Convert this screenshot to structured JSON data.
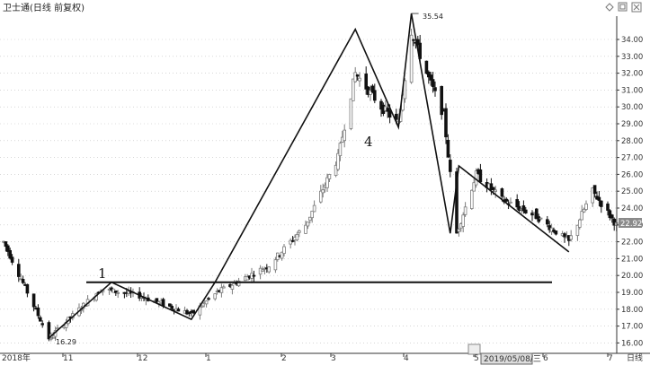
{
  "window": {
    "title": "卫士通(日线 前复权)",
    "controls": [
      "diamond-icon",
      "restore-icon",
      "close-icon"
    ]
  },
  "chart_data": {
    "type": "candlestick",
    "symbol": "卫士通",
    "period": "日线",
    "adjustment": "前复权",
    "y_axis": {
      "min": 16.0,
      "max": 34.0,
      "step": 1.0,
      "tick_labels": [
        "34.00",
        "33.00",
        "32.00",
        "31.00",
        "30.00",
        "29.00",
        "28.00",
        "27.00",
        "26.00",
        "25.00",
        "24.00",
        "23.00",
        "22.00",
        "21.00",
        "20.00",
        "19.00",
        "18.00",
        "17.00",
        "16.00"
      ]
    },
    "x_axis": {
      "tick_labels": [
        "2018年",
        "11",
        "12",
        "1",
        "2",
        "3",
        "4",
        "5",
        "6",
        "7"
      ],
      "highlighted_date": "2019/05/08/三",
      "period_label": "日线"
    },
    "last_price": "22.92",
    "annotations": {
      "low": "16.29",
      "high": "35.54"
    },
    "wave_labels": [
      "1",
      "4"
    ],
    "support_line": {
      "price": 19.6
    },
    "wave_path": [
      {
        "date": "2018-10-22",
        "price": 16.29
      },
      {
        "date": "2018-11-20",
        "price": 19.6
      },
      {
        "date": "2018-12-27",
        "price": 17.4
      },
      {
        "date": "2019-01-07",
        "price": 19.6
      },
      {
        "date": "2019-03-13",
        "price": 34.6
      },
      {
        "date": "2019-04-02",
        "price": 28.8
      },
      {
        "date": "2019-04-08",
        "price": 35.54
      },
      {
        "date": "2019-04-26",
        "price": 22.5
      },
      {
        "date": "2019-04-30",
        "price": 26.5
      },
      {
        "date": "2019-06-20",
        "price": 21.4
      }
    ],
    "anchors": [
      {
        "date": "2018-10-01",
        "price": 22.0
      },
      {
        "date": "2018-10-22",
        "price": 16.29
      },
      {
        "date": "2018-11-15",
        "price": 19.2
      },
      {
        "date": "2018-12-03",
        "price": 18.8
      },
      {
        "date": "2018-12-27",
        "price": 17.7
      },
      {
        "date": "2019-01-08",
        "price": 19.0
      },
      {
        "date": "2019-02-01",
        "price": 20.6
      },
      {
        "date": "2019-02-18",
        "price": 23.0
      },
      {
        "date": "2019-03-05",
        "price": 27.0
      },
      {
        "date": "2019-03-13",
        "price": 32.0
      },
      {
        "date": "2019-03-25",
        "price": 30.0
      },
      {
        "date": "2019-04-02",
        "price": 29.0
      },
      {
        "date": "2019-04-08",
        "price": 34.5
      },
      {
        "date": "2019-04-15",
        "price": 32.0
      },
      {
        "date": "2019-04-23",
        "price": 29.5
      },
      {
        "date": "2019-04-29",
        "price": 22.5
      },
      {
        "date": "2019-05-08",
        "price": 26.0
      },
      {
        "date": "2019-05-20",
        "price": 24.5
      },
      {
        "date": "2019-06-05",
        "price": 23.5
      },
      {
        "date": "2019-06-20",
        "price": 22.0
      },
      {
        "date": "2019-07-01",
        "price": 25.0
      },
      {
        "date": "2019-07-12",
        "price": 23.0
      }
    ],
    "colors": {
      "up": "#7a7a7a",
      "down": "#111111",
      "line": "#111111",
      "grid": "#bfbfbf",
      "current_price_box": "#8a8a8a"
    }
  }
}
